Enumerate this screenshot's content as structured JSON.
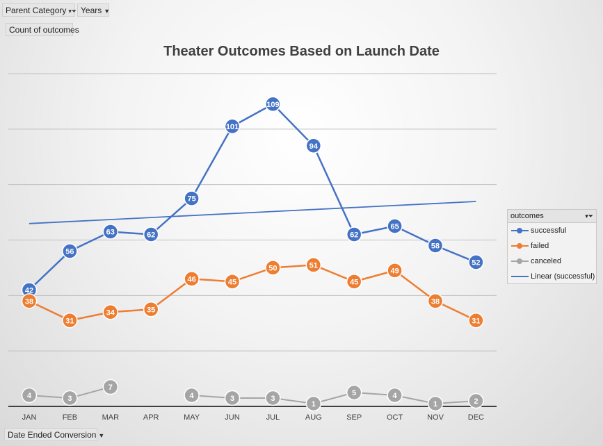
{
  "filters": {
    "parent_category": "Parent Category",
    "years": "Years",
    "values": "Count of outcomes",
    "axis_field": "Date Ended Conversion"
  },
  "icons": {
    "filter": "filter-funnel-icon",
    "dropdown": "dropdown-arrow-icon"
  },
  "legend": {
    "title": "outcomes",
    "items": [
      "successful",
      "failed",
      "canceled",
      "Linear (successful)"
    ]
  },
  "colors": {
    "successful": "#4472C4",
    "failed": "#ED7D31",
    "canceled": "#A5A5A5",
    "trendline": "#4472C4"
  },
  "chart_data": {
    "type": "line",
    "title": "Theater Outcomes Based on Launch Date",
    "xlabel": "",
    "ylabel": "",
    "categories": [
      "JAN",
      "FEB",
      "MAR",
      "APR",
      "MAY",
      "JUN",
      "JUL",
      "AUG",
      "SEP",
      "OCT",
      "NOV",
      "DEC"
    ],
    "ylim": [
      0,
      120
    ],
    "y_gridlines": [
      20,
      40,
      60,
      80,
      100,
      120
    ],
    "y_tick_labels_visible": false,
    "grid": true,
    "legend_position": "right",
    "series": [
      {
        "name": "successful",
        "values": [
          42,
          56,
          63,
          62,
          75,
          101,
          109,
          94,
          62,
          65,
          58,
          52
        ]
      },
      {
        "name": "failed",
        "values": [
          38,
          31,
          34,
          35,
          46,
          45,
          50,
          51,
          45,
          49,
          38,
          31
        ]
      },
      {
        "name": "canceled",
        "values": [
          4,
          3,
          7,
          null,
          4,
          3,
          3,
          1,
          5,
          4,
          1,
          2
        ]
      }
    ],
    "trendline": {
      "name": "Linear (successful)",
      "of": "successful",
      "type": "linear"
    }
  }
}
